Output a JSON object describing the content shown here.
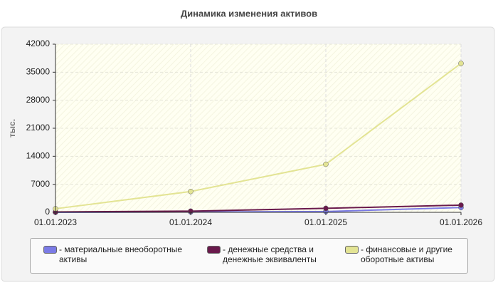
{
  "chart_data": {
    "type": "line",
    "title": "Динамика изменения активов",
    "y_label": "тыс.",
    "categories": [
      "01.01.2023",
      "01.01.2024",
      "01.01.2025",
      "01.01.2026"
    ],
    "series": [
      {
        "name": "- материальные внеоборотные активы",
        "color": "#7b7be6",
        "values": [
          0,
          100,
          200,
          1200
        ]
      },
      {
        "name": "- денежные средства и денежные эквиваленты",
        "color": "#6a1a4c",
        "values": [
          100,
          300,
          1000,
          1800
        ]
      },
      {
        "name": "- финансовые и другие оборотные активы",
        "color": "#e3e494",
        "values": [
          900,
          5200,
          12000,
          37200
        ]
      }
    ],
    "ylim": [
      0,
      42000
    ],
    "yticks": [
      0,
      7000,
      14000,
      21000,
      28000,
      35000,
      42000
    ],
    "grid": true
  }
}
